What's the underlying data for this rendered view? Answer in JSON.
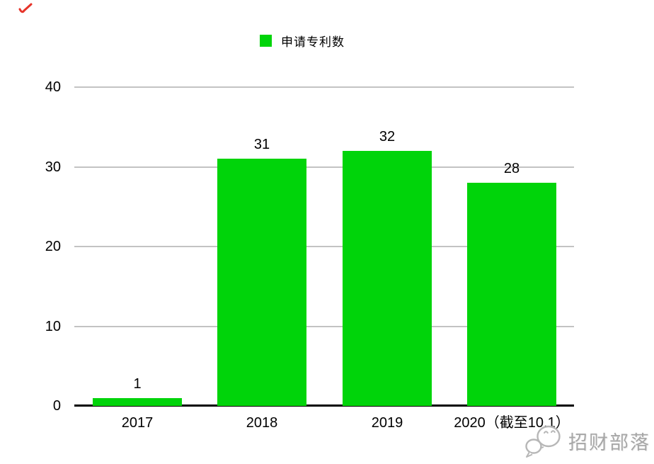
{
  "page": {
    "background": "#ffffff"
  },
  "annotation": {
    "red_mark": "small red scribble stroke",
    "red_color": "#e63329"
  },
  "legend": {
    "label": "申请专利数",
    "swatch_color": "#00d40a"
  },
  "chart_data": {
    "type": "bar",
    "title": "",
    "series_name": "申请专利数",
    "categories": [
      "2017",
      "2018",
      "2019",
      "2020（截至10.1）"
    ],
    "values": [
      1,
      31,
      32,
      28
    ],
    "value_labels": [
      "1",
      "31",
      "32",
      "28"
    ],
    "y_ticks": [
      "40",
      "30",
      "20",
      "10",
      "0"
    ],
    "ytick_values": [
      40,
      30,
      20,
      10,
      0
    ],
    "ylim": [
      0,
      40
    ],
    "bar_color": "#00d40a",
    "gridline_color": "#c3c3c3",
    "axis_color": "#000000",
    "grid": true,
    "legend_position": "top"
  },
  "watermark": {
    "icon": "chat-bubbles-face-icon",
    "text": "招财部落",
    "color": "#a7a7a7"
  }
}
